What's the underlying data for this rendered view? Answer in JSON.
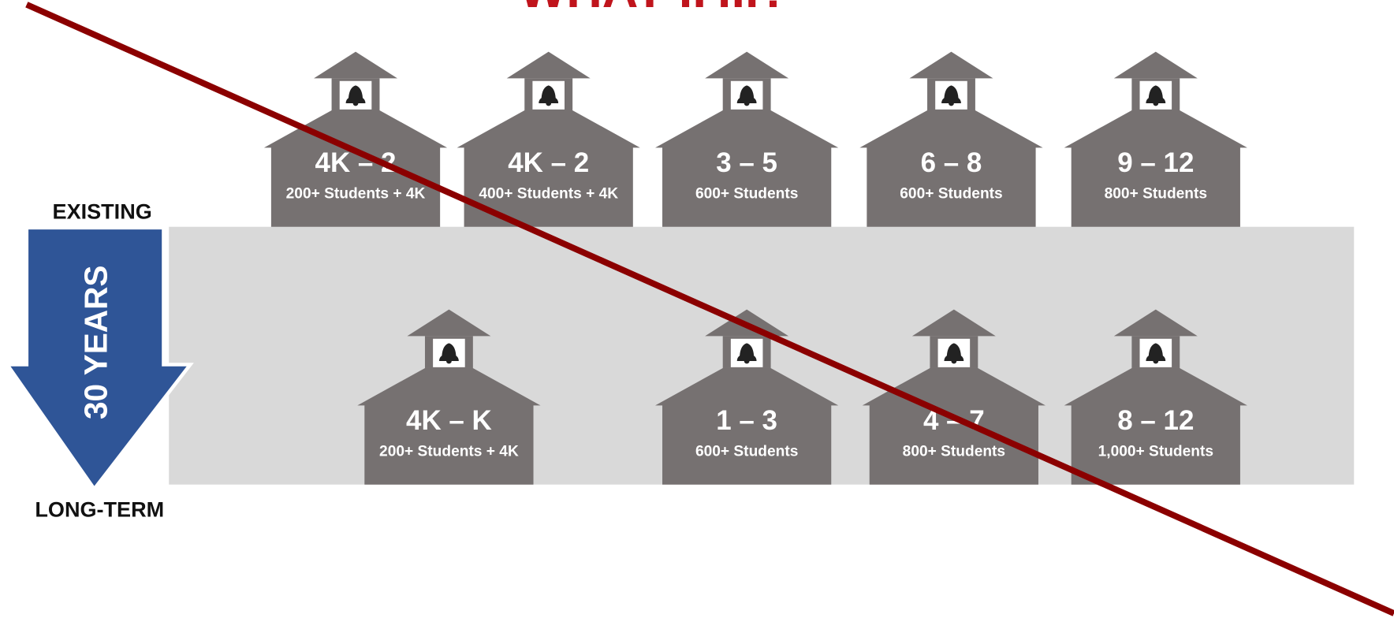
{
  "title": "WHAT IF...?",
  "existing_label": "EXISTING",
  "long_term_label": "LONG-TERM",
  "arrow_label": "30 YEARS",
  "existing": [
    {
      "grades": "4K – 2",
      "students": "200+ Students + 4K"
    },
    {
      "grades": "4K – 2",
      "students": "400+ Students + 4K"
    },
    {
      "grades": "3 – 5",
      "students": "600+ Students"
    },
    {
      "grades": "6 – 8",
      "students": "600+ Students"
    },
    {
      "grades": "9 – 12",
      "students": "800+ Students"
    }
  ],
  "long_term": [
    {
      "grades": "4K – K",
      "students": "200+ Students + 4K"
    },
    {
      "grades": "1 – 3",
      "students": "600+ Students"
    },
    {
      "grades": "4 – 7",
      "students": "800+ Students"
    },
    {
      "grades": "8 – 12",
      "students": "1,000+ Students"
    }
  ]
}
